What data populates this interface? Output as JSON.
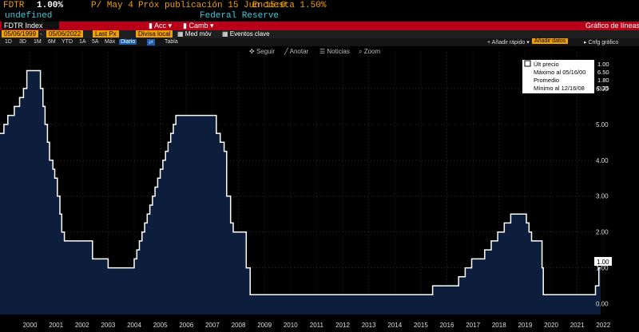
{
  "header": {
    "ticker": "FDTR",
    "value": "1.00%",
    "p_label": "P/ May 4",
    "next_pub": "Próx publicación 15 Jun 15:0",
    "survey": "Encuesta 1.50%",
    "undefined_label": "undefined",
    "source": "Federal Reserve"
  },
  "toolbar": {
    "index": "FDTR Index",
    "acc": "Acc",
    "camb": "Camb",
    "chart_kind": "Gráfico de líneas"
  },
  "controls": {
    "start_date": "05/06/1999",
    "end_date": "05/06/2022",
    "field": "Last Px",
    "currency": "Divisa local",
    "moving_avg": "Med móv",
    "events": "Eventos clave",
    "add_quick": "Añadir rápido",
    "add_data": "Añadir datos",
    "chart_settings": "Cnfg gráfico"
  },
  "ranges": [
    "1D",
    "3D",
    "1M",
    "6M",
    "YTD",
    "1A",
    "5A",
    "Máx"
  ],
  "period": "Diario",
  "table_label": "Tabla",
  "chart_tools": [
    "Seguir",
    "Anotar",
    "Noticias",
    "Zoom"
  ],
  "legend": {
    "rows": [
      {
        "label": "Últ precio",
        "value": "1.00"
      },
      {
        "label": "Máximo al 05/16/00",
        "value": "6.50"
      },
      {
        "label": "Promedio",
        "value": "1.80"
      },
      {
        "label": "Mínimo al 12/16/08",
        "value": "0.25"
      }
    ]
  },
  "colors": {
    "accent": "#f0a000",
    "fill": "#0c1e3c",
    "line": "#ffffff",
    "bar": "#b80018"
  },
  "chart_data": {
    "type": "area",
    "title": "",
    "xlabel": "",
    "ylabel": "",
    "xlim": [
      1999.35,
      2022.4
    ],
    "ylim": [
      -0.3,
      7.0
    ],
    "y_ticks": [
      "0.00",
      "1.00",
      "2.00",
      "3.00",
      "4.00",
      "5.00",
      "6.00"
    ],
    "x_ticks": [
      "2000",
      "2001",
      "2002",
      "2003",
      "2004",
      "2005",
      "2006",
      "2007",
      "2008",
      "2009",
      "2010",
      "2011",
      "2012",
      "2013",
      "2014",
      "2015",
      "2016",
      "2017",
      "2018",
      "2019",
      "2020",
      "2021",
      "2022"
    ],
    "last_value_label": "1.00",
    "series": [
      {
        "x": [
          1999.35,
          1999.5,
          1999.65,
          1999.9,
          2000.1,
          2000.25,
          2000.38,
          2000.9,
          2001.0,
          2001.08,
          2001.17,
          2001.25,
          2001.38,
          2001.45,
          2001.55,
          2001.65,
          2001.72,
          2001.82,
          2001.95,
          2002.9,
          2003.5,
          2004.5,
          2004.6,
          2004.7,
          2004.8,
          2004.9,
          2005.0,
          2005.1,
          2005.2,
          2005.3,
          2005.4,
          2005.5,
          2005.6,
          2005.7,
          2005.8,
          2005.9,
          2006.0,
          2006.1,
          2006.2,
          2006.4,
          2006.5,
          2007.65,
          2007.8,
          2007.95,
          2008.05,
          2008.2,
          2008.3,
          2008.8,
          2008.95,
          2015.95,
          2016.95,
          2017.2,
          2017.45,
          2017.95,
          2018.2,
          2018.45,
          2018.7,
          2018.95,
          2019.55,
          2019.65,
          2019.75,
          2020.15,
          2020.2,
          2022.2,
          2022.33,
          2022.4
        ],
        "y": [
          4.75,
          5.0,
          5.25,
          5.5,
          5.75,
          6.0,
          6.5,
          6.0,
          5.5,
          5.0,
          4.5,
          4.0,
          3.75,
          3.5,
          3.0,
          2.5,
          2.0,
          1.75,
          1.75,
          1.25,
          1.0,
          1.25,
          1.5,
          1.75,
          2.0,
          2.25,
          2.5,
          2.75,
          3.0,
          3.25,
          3.5,
          3.75,
          4.0,
          4.25,
          4.5,
          4.75,
          5.0,
          5.25,
          5.25,
          5.25,
          5.25,
          4.75,
          4.5,
          4.25,
          3.0,
          2.25,
          2.0,
          1.0,
          0.25,
          0.5,
          0.75,
          1.0,
          1.25,
          1.5,
          1.75,
          2.0,
          2.25,
          2.5,
          2.25,
          2.0,
          1.75,
          1.0,
          0.25,
          0.5,
          1.0,
          1.0
        ]
      }
    ]
  }
}
